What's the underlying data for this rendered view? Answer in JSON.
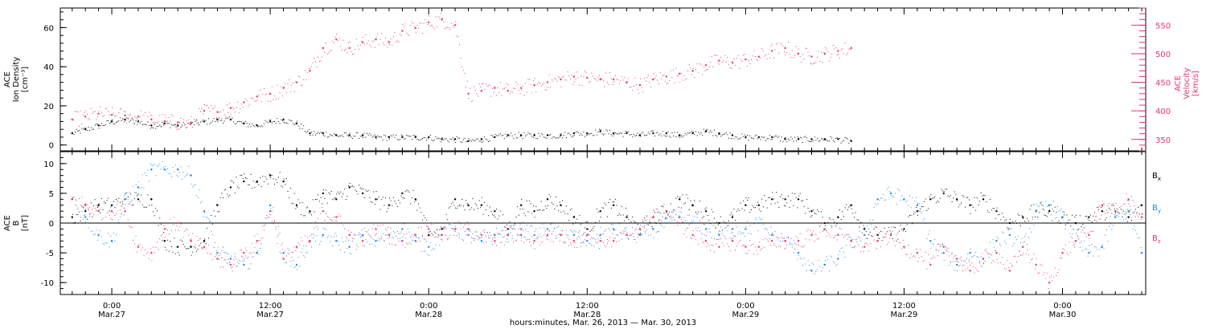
{
  "chart_data": [
    {
      "type": "scatter",
      "panel": "top",
      "left_axis": {
        "label_lines": [
          "ACE",
          "Ion Density",
          "[cm⁻³]"
        ],
        "ylim": [
          -3,
          70
        ],
        "ticks": [
          0,
          20,
          40,
          60
        ],
        "tick_labels": [
          "0",
          "20",
          "40",
          "60"
        ]
      },
      "right_axis": {
        "label_lines": [
          "ACE",
          "Velocity",
          "[km/s]"
        ],
        "ylim": [
          330,
          580
        ],
        "ticks": [
          350,
          400,
          450,
          500,
          550
        ],
        "tick_labels": [
          "350",
          "400",
          "450",
          "500",
          "550"
        ],
        "color": "#e8356a"
      },
      "series": [
        {
          "name": "Ion Density",
          "axis": "left",
          "color": "#000000",
          "x": [
            -3,
            -2,
            -1,
            0,
            1,
            2,
            3,
            4,
            5,
            6,
            7,
            8,
            9,
            10,
            11,
            12,
            13,
            14,
            15,
            16,
            17,
            18,
            19,
            20,
            21,
            22,
            23,
            24,
            25,
            26,
            27,
            28,
            29,
            30,
            31,
            32,
            33,
            34,
            35,
            36,
            37,
            38,
            39,
            40,
            41,
            42,
            43,
            44,
            45,
            46,
            47,
            48,
            49,
            50,
            51,
            52,
            53,
            54,
            55,
            56
          ],
          "y": [
            6,
            8,
            10,
            12,
            13,
            12,
            10,
            11,
            10,
            11,
            12,
            13,
            13,
            11,
            10,
            12,
            13,
            11,
            6,
            6,
            5,
            5,
            5,
            4,
            4,
            4,
            4,
            4,
            3,
            3,
            2,
            3,
            4,
            5,
            5,
            5,
            5,
            5,
            6,
            6,
            7,
            6,
            6,
            5,
            6,
            6,
            5,
            6,
            7,
            6,
            5,
            4,
            4,
            4,
            3,
            3,
            3,
            3,
            3,
            2
          ]
        },
        {
          "name": "Velocity",
          "axis": "right",
          "color": "#e8356a",
          "x": [
            -3,
            -2,
            -1,
            0,
            1,
            2,
            3,
            4,
            5,
            6,
            7,
            8,
            9,
            10,
            11,
            12,
            13,
            14,
            15,
            16,
            17,
            18,
            19,
            20,
            21,
            22,
            23,
            24,
            25,
            26,
            27,
            28,
            29,
            30,
            31,
            32,
            33,
            34,
            35,
            36,
            37,
            38,
            39,
            40,
            41,
            42,
            43,
            44,
            45,
            46,
            47,
            48,
            49,
            50,
            51,
            52,
            53,
            54,
            55,
            56
          ],
          "y": [
            385,
            390,
            395,
            393,
            392,
            390,
            385,
            382,
            380,
            378,
            400,
            398,
            405,
            415,
            425,
            430,
            440,
            450,
            470,
            510,
            525,
            510,
            520,
            525,
            520,
            540,
            545,
            555,
            560,
            550,
            430,
            435,
            440,
            435,
            440,
            445,
            450,
            455,
            460,
            458,
            455,
            455,
            450,
            445,
            455,
            460,
            465,
            470,
            480,
            488,
            485,
            490,
            495,
            505,
            510,
            500,
            495,
            500,
            505,
            510
          ]
        }
      ]
    },
    {
      "type": "scatter",
      "panel": "bottom",
      "left_axis": {
        "label_lines": [
          "ACE",
          "B",
          "[nT]"
        ],
        "ylim": [
          -12,
          12
        ],
        "ticks": [
          -10,
          -5,
          0,
          5,
          10
        ],
        "tick_labels": [
          "-10",
          "-5",
          "0",
          "5",
          "10"
        ]
      },
      "zero_line": true,
      "series": [
        {
          "name": "B",
          "subscript": "x",
          "color": "#000000",
          "x": [
            -3,
            -2,
            -1,
            0,
            1,
            2,
            3,
            4,
            5,
            6,
            7,
            8,
            9,
            10,
            11,
            12,
            13,
            14,
            15,
            16,
            17,
            18,
            19,
            20,
            21,
            22,
            23,
            24,
            25,
            26,
            27,
            28,
            29,
            30,
            31,
            32,
            33,
            34,
            35,
            36,
            37,
            38,
            39,
            40,
            41,
            42,
            43,
            44,
            45,
            46,
            47,
            48,
            49,
            50,
            51,
            52,
            53,
            54,
            55,
            56,
            57,
            58,
            59,
            60,
            61,
            62,
            63,
            64,
            65,
            66,
            67,
            68,
            69,
            70,
            71,
            72,
            73,
            74,
            75,
            76,
            77,
            78
          ],
          "y": [
            1,
            2,
            3,
            3,
            4,
            4,
            4,
            -3,
            -4,
            -4,
            -3,
            3,
            6,
            7,
            7,
            8,
            7,
            3,
            2,
            5,
            4,
            6,
            5,
            4,
            3,
            5,
            4,
            -2,
            -1,
            4,
            3,
            3,
            2,
            -1,
            3,
            2,
            4,
            3,
            1,
            -1,
            2,
            3,
            1,
            -1,
            1,
            2,
            4,
            3,
            2,
            0,
            1,
            3,
            3,
            4,
            4,
            4,
            2,
            0,
            1,
            3,
            -1,
            -2,
            -2,
            -1,
            2,
            4,
            5,
            4,
            3,
            4,
            2,
            0,
            1,
            2,
            2,
            1,
            0,
            1,
            2,
            2,
            1,
            3
          ]
        },
        {
          "name": "B",
          "subscript": "y",
          "color": "#1e88e5",
          "x": [
            -3,
            -2,
            -1,
            0,
            1,
            2,
            3,
            4,
            5,
            6,
            7,
            8,
            9,
            10,
            11,
            12,
            13,
            14,
            15,
            16,
            17,
            18,
            19,
            20,
            21,
            22,
            23,
            24,
            25,
            26,
            27,
            28,
            29,
            30,
            31,
            32,
            33,
            34,
            35,
            36,
            37,
            38,
            39,
            40,
            41,
            42,
            43,
            44,
            45,
            46,
            47,
            48,
            49,
            50,
            51,
            52,
            53,
            54,
            55,
            56,
            57,
            58,
            59,
            60,
            61,
            62,
            63,
            64,
            65,
            66,
            67,
            68,
            69,
            70,
            71,
            72,
            73,
            74,
            75,
            76,
            77,
            78
          ],
          "y": [
            4,
            1,
            -2,
            -3,
            4,
            6,
            9,
            9,
            9,
            8,
            2,
            -5,
            -6,
            -7,
            -5,
            3,
            -5,
            -7,
            -3,
            -2,
            -3,
            -4,
            -2,
            -3,
            -2,
            -1,
            -3,
            -4,
            -2,
            -1,
            -2,
            -3,
            -2,
            -2,
            -1,
            -2,
            -1,
            -2,
            -2,
            -3,
            -2,
            -1,
            -2,
            -2,
            -1,
            0,
            1,
            0,
            -1,
            -2,
            -1,
            -1,
            0,
            -2,
            -3,
            -5,
            -8,
            -7,
            -6,
            -3,
            -2,
            4,
            5,
            4,
            3,
            -3,
            -5,
            -7,
            -5,
            -6,
            -3,
            -2,
            -4,
            2,
            3,
            1,
            -3,
            -5,
            -4,
            1,
            2,
            -5
          ]
        },
        {
          "name": "B",
          "subscript": "z",
          "color": "#e8356a",
          "x": [
            -3,
            -2,
            -1,
            0,
            1,
            2,
            3,
            4,
            5,
            6,
            7,
            8,
            9,
            10,
            11,
            12,
            13,
            14,
            15,
            16,
            17,
            18,
            19,
            20,
            21,
            22,
            23,
            24,
            25,
            26,
            27,
            28,
            29,
            30,
            31,
            32,
            33,
            34,
            35,
            36,
            37,
            38,
            39,
            40,
            41,
            42,
            43,
            44,
            45,
            46,
            47,
            48,
            49,
            50,
            51,
            52,
            53,
            54,
            55,
            56,
            57,
            58,
            59,
            60,
            61,
            62,
            63,
            64,
            65,
            66,
            67,
            68,
            69,
            70,
            71,
            72,
            73,
            74,
            75,
            76,
            77,
            78
          ],
          "y": [
            4,
            3,
            2,
            2,
            2,
            -4,
            -5,
            -1,
            0,
            -3,
            -4,
            -6,
            -7,
            -5,
            -3,
            2,
            -6,
            -4,
            -3,
            2,
            1,
            -2,
            -3,
            -1,
            -2,
            -3,
            -2,
            -1,
            -2,
            -1,
            -1,
            -2,
            -3,
            -2,
            -2,
            -3,
            -2,
            -2,
            -3,
            -2,
            -3,
            -3,
            -2,
            -1,
            1,
            2,
            0,
            -2,
            -3,
            -4,
            -3,
            -4,
            -4,
            -3,
            -3,
            -3,
            -2,
            -1,
            -2,
            -3,
            -4,
            -3,
            -2,
            -4,
            -5,
            -7,
            -4,
            -6,
            -8,
            -6,
            -5,
            -8,
            -4,
            -7,
            -10,
            -5,
            -3,
            -2,
            3,
            2,
            4,
            1
          ]
        }
      ]
    }
  ],
  "x_axis": {
    "range_hours": [
      -3.9,
      78.3
    ],
    "ticks": [
      0,
      12,
      24,
      36,
      48,
      60,
      72
    ],
    "tick_time_labels": [
      "0:00",
      "12:00",
      "0:00",
      "12:00",
      "0:00",
      "12:00",
      "0:00"
    ],
    "tick_date_labels": [
      "Mar.27",
      "Mar.27",
      "Mar.28",
      "Mar.28",
      "Mar.29",
      "Mar.29",
      "Mar.30"
    ],
    "title": "hours:minutes, Mar. 26, 2013 — Mar. 30, 2013"
  }
}
